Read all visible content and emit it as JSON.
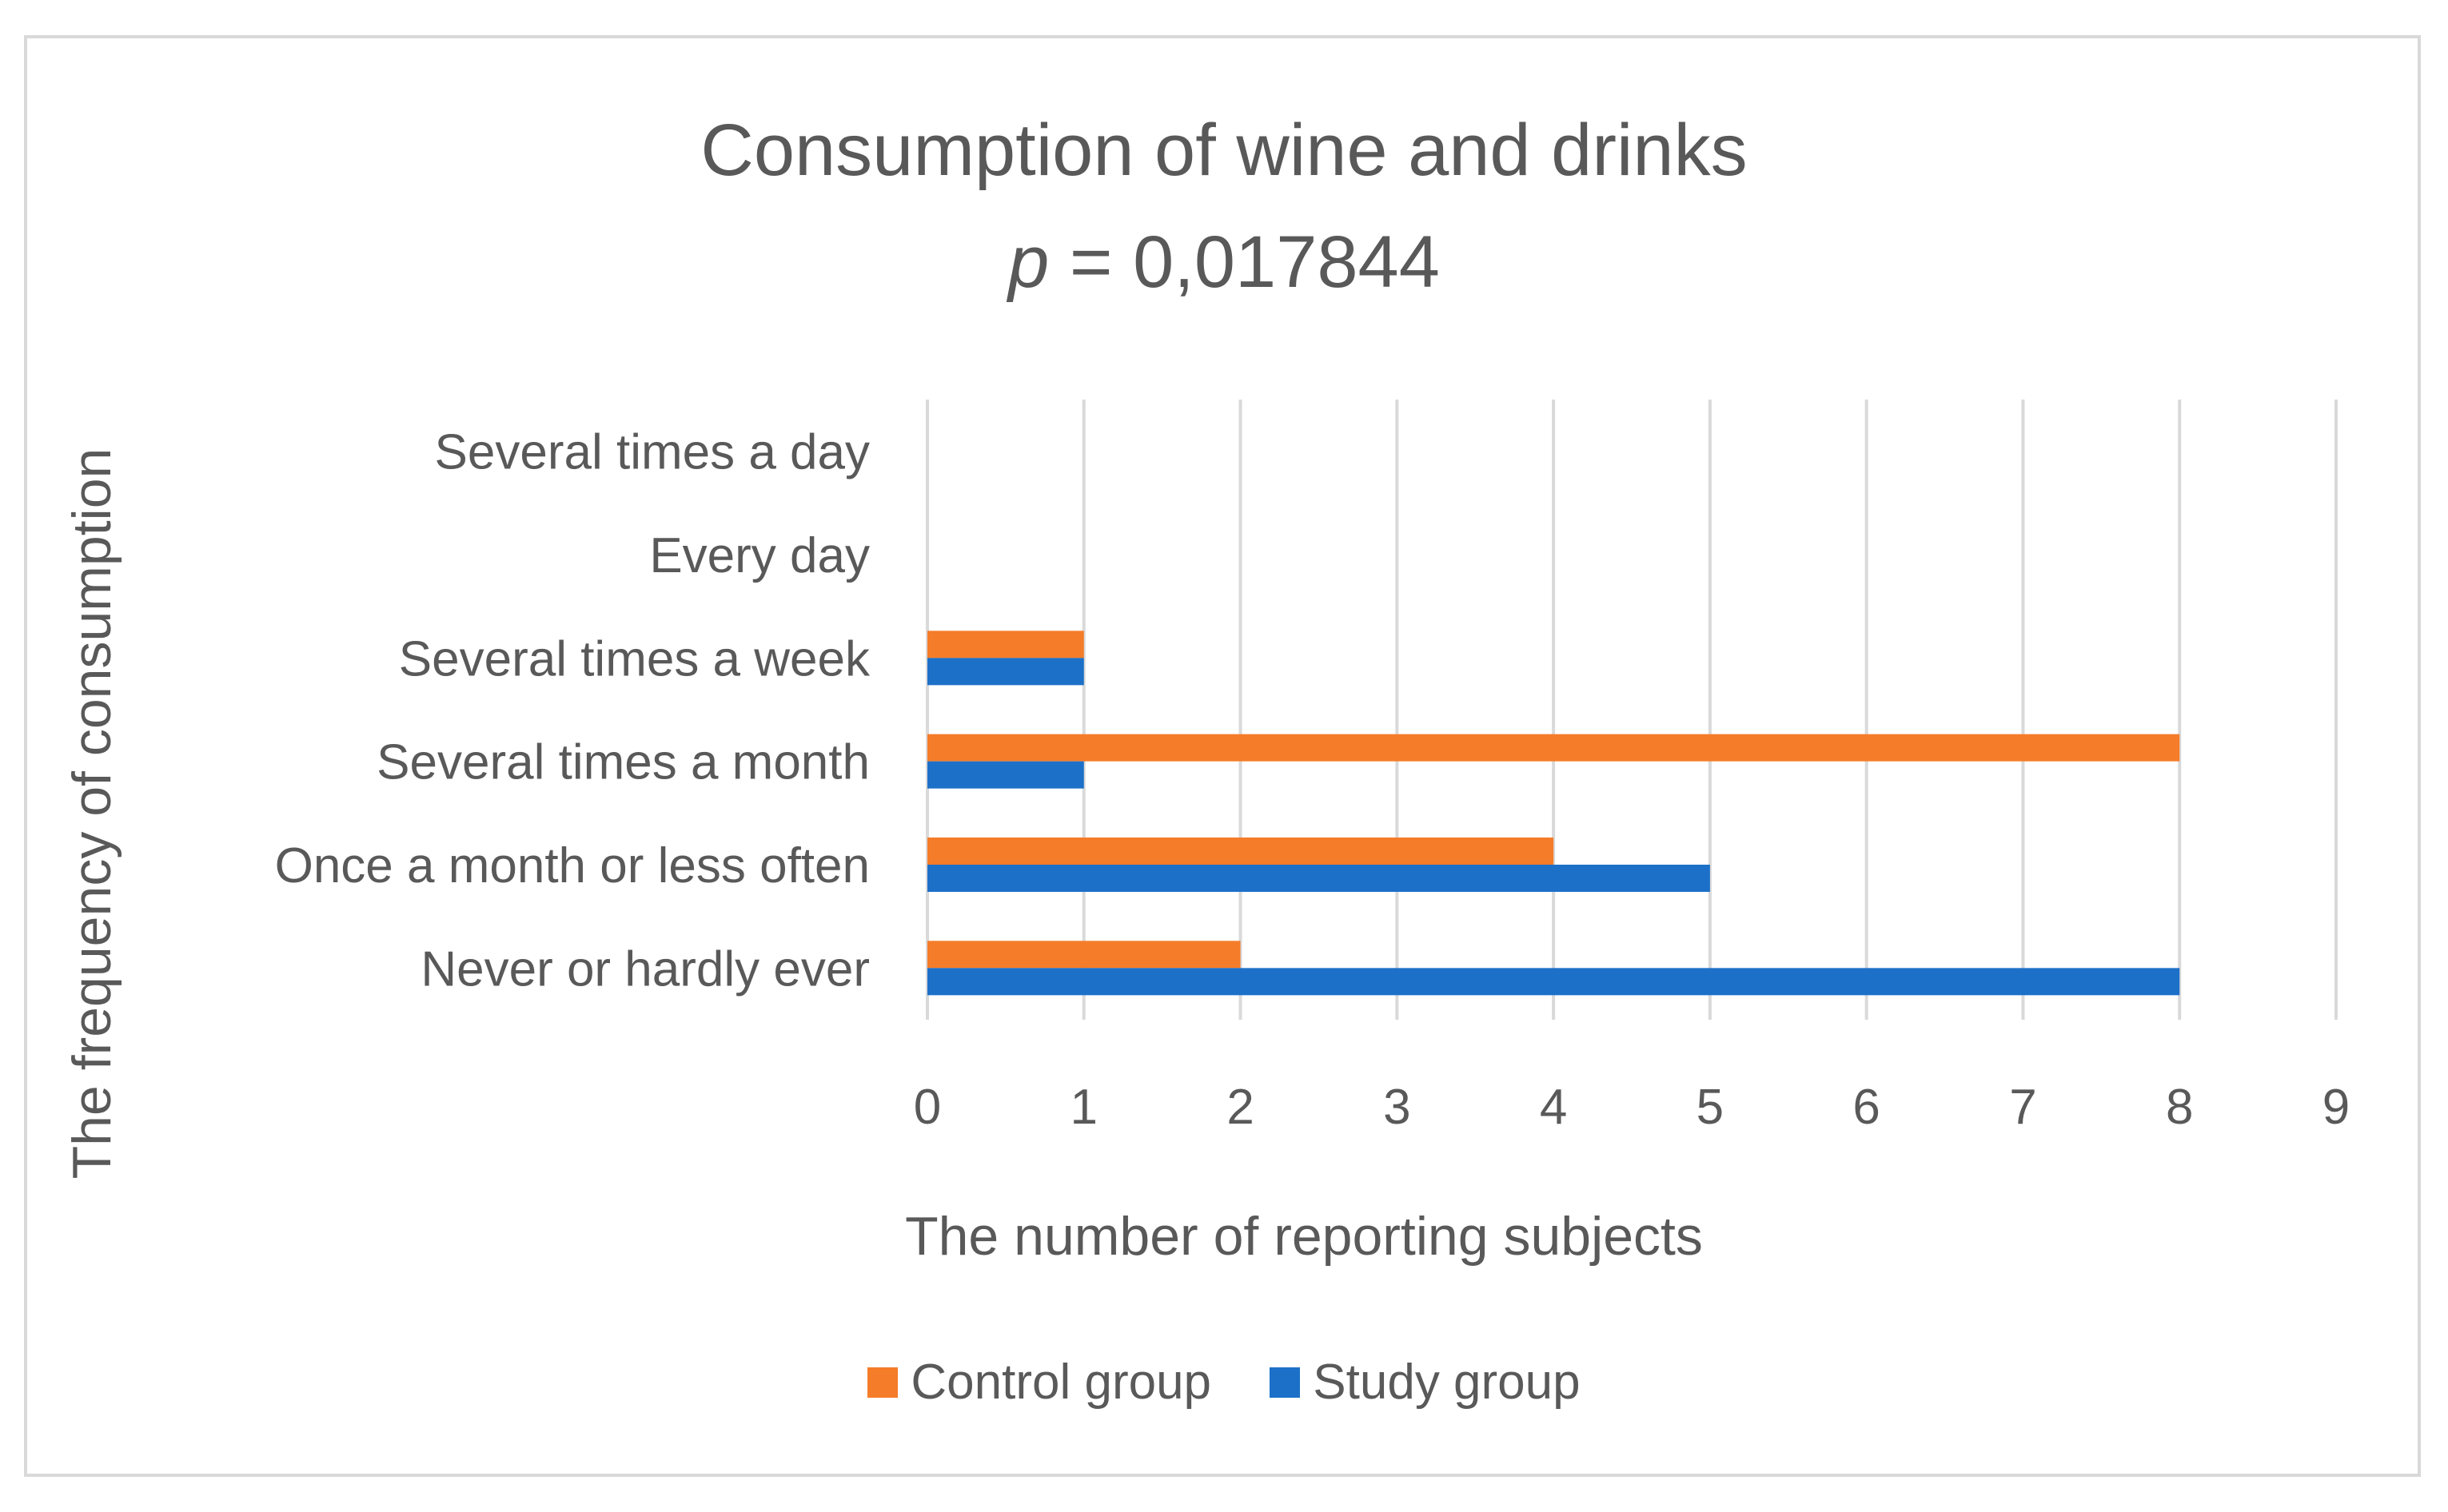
{
  "chart_data": {
    "type": "bar",
    "orientation": "horizontal",
    "title": "Consumption of wine and drinks",
    "subtitle_var": "p",
    "subtitle_rest": " = 0,017844",
    "xlabel": "The number of reporting subjects",
    "ylabel": "The frequency of consumption",
    "categories": [
      "Never or hardly ever",
      "Once a month or less often",
      "Several times a month",
      "Several times a week",
      "Every day",
      "Several times a day"
    ],
    "series": [
      {
        "name": "Control group",
        "color": "#f57c28",
        "values": [
          2,
          4,
          8,
          1,
          0,
          0
        ]
      },
      {
        "name": "Study group",
        "color": "#1c70c8",
        "values": [
          8,
          5,
          1,
          1,
          0,
          0
        ]
      }
    ],
    "xlim": [
      0,
      9
    ],
    "xticks": [
      0,
      1,
      2,
      3,
      4,
      5,
      6,
      7,
      8,
      9
    ],
    "grid": true,
    "legend_position": "bottom"
  }
}
